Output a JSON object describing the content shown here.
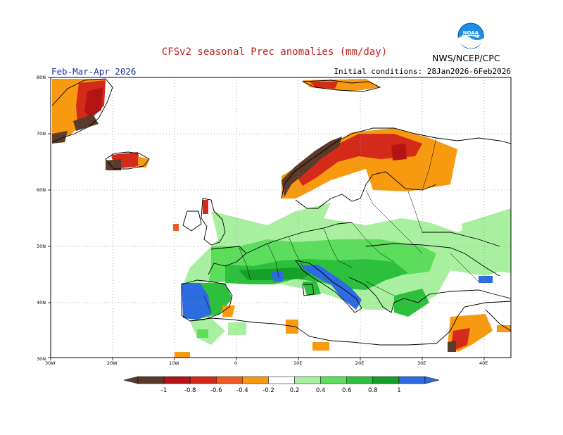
{
  "title": "CFSv2 seasonal Prec anomalies (mm/day)",
  "agency": "NWS/NCEP/CPC",
  "period": "Feb-Mar-Apr 2026",
  "initial_conditions": "Initial conditions: 28Jan2026-6Feb2026",
  "lat_labels": [
    "80N",
    "70N",
    "60N",
    "50N",
    "40N",
    "30N"
  ],
  "lon_labels": [
    "30W",
    "20W",
    "10W",
    "0",
    "10E",
    "20E",
    "30E",
    "40E"
  ],
  "colorbar": {
    "labels": [
      "-1",
      "-0.8",
      "-0.6",
      "-0.4",
      "-0.2",
      "0.2",
      "0.4",
      "0.6",
      "0.8",
      "1"
    ],
    "colors": [
      "#5a3a2a",
      "#b41414",
      "#d42a1a",
      "#f05a20",
      "#f89a10",
      "#ffffff",
      "#a8f0a0",
      "#5cde5c",
      "#2cc03c",
      "#14a02a",
      "#2c6ce0"
    ]
  },
  "colors": {
    "title": "#c02020",
    "period": "#1c2ea8",
    "grid": "#9a9a9a",
    "noaa_blue": "#1e8ee8"
  },
  "logo_text": "NOAA"
}
